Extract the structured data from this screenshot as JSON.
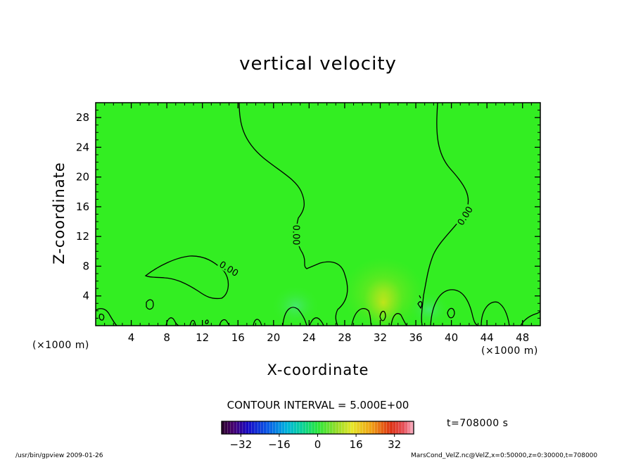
{
  "chart_data": {
    "type": "heatmap",
    "title": "vertical velocity",
    "xlabel": "X-coordinate",
    "ylabel": "Z-coordinate",
    "x_unit": "(×1000 m)",
    "z_unit": "(×1000 m)",
    "xlim": [
      0,
      50
    ],
    "ylim": [
      0,
      30
    ],
    "x_ticks": [
      4,
      8,
      12,
      16,
      20,
      24,
      28,
      32,
      36,
      40,
      44,
      48
    ],
    "y_ticks": [
      4,
      8,
      12,
      16,
      20,
      24,
      28
    ],
    "contour_label": "0.00",
    "contour_interval": "CONTOUR INTERVAL = 5.000E+00",
    "colorbar": {
      "min": -40,
      "max": 40,
      "ticks": [
        -32,
        -16,
        0,
        16,
        32
      ],
      "tick_labels": [
        "−32",
        "−16",
        "0",
        "16",
        "32"
      ]
    },
    "time_label": "t=708000 s",
    "field_color": "#33ee22"
  },
  "footer": {
    "left": "/usr/bin/gpview  2009-01-26",
    "right": "MarsCond_VelZ.nc@VelZ,x=0:50000,z=0:30000,t=708000"
  }
}
